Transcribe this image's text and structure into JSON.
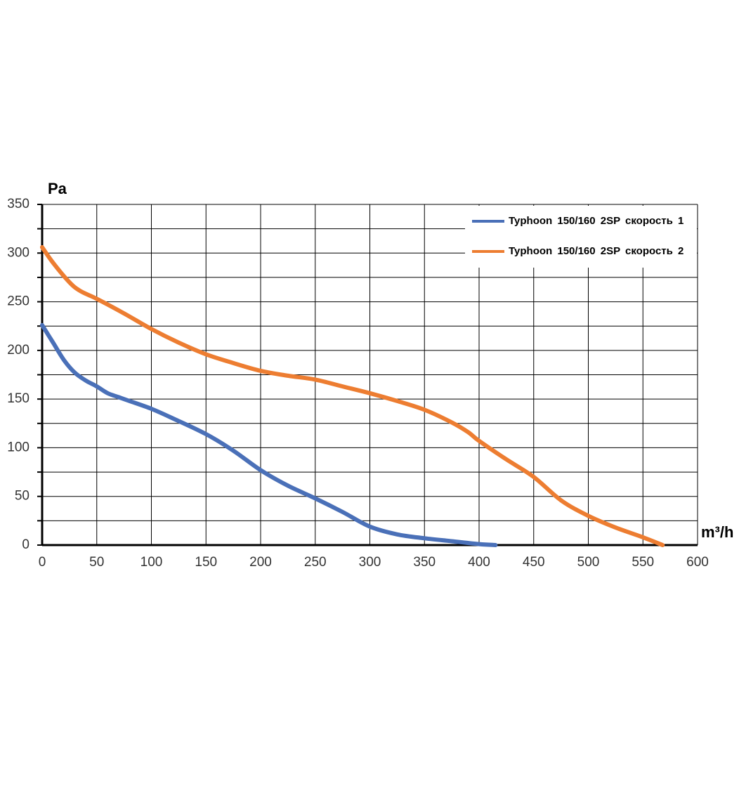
{
  "chart_data": {
    "type": "line",
    "y_label": "Pa",
    "x_label": "m³/h",
    "xlim": [
      0,
      600
    ],
    "xticks": [
      0,
      50,
      100,
      150,
      200,
      250,
      300,
      350,
      400,
      450,
      500,
      550,
      600
    ],
    "ylim": [
      0,
      350
    ],
    "yticks": [
      0,
      50,
      100,
      150,
      200,
      250,
      300,
      350
    ],
    "yminorticks": [
      25,
      75,
      125,
      175,
      225,
      275,
      325
    ],
    "grid": true,
    "legend": "upper right",
    "series": [
      {
        "name": "Typhoon 150/160 2SP скорость 1",
        "color": "#4a70b8",
        "x": [
          0,
          10,
          20,
          30,
          40,
          50,
          60,
          70,
          80,
          100,
          120,
          150,
          175,
          200,
          225,
          250,
          275,
          300,
          325,
          350,
          375,
          400,
          415
        ],
        "values": [
          226,
          208,
          190,
          177,
          169,
          163,
          156,
          152,
          148,
          140,
          130,
          114,
          97,
          77,
          61,
          48,
          34,
          19,
          11,
          7,
          4,
          1,
          0
        ]
      },
      {
        "name": "Typhoon 150/160 2SP скорость 2",
        "color": "#ed7d31",
        "x": [
          0,
          10,
          25,
          35,
          50,
          75,
          100,
          125,
          150,
          175,
          200,
          225,
          250,
          275,
          300,
          325,
          350,
          375,
          390,
          400,
          425,
          450,
          475,
          500,
          525,
          550,
          568
        ],
        "values": [
          306,
          290,
          270,
          261,
          253,
          238,
          222,
          208,
          196,
          187,
          179,
          174,
          170,
          163,
          156,
          148,
          139,
          126,
          116,
          107,
          88,
          70,
          46,
          30,
          18,
          8,
          0
        ]
      }
    ]
  }
}
